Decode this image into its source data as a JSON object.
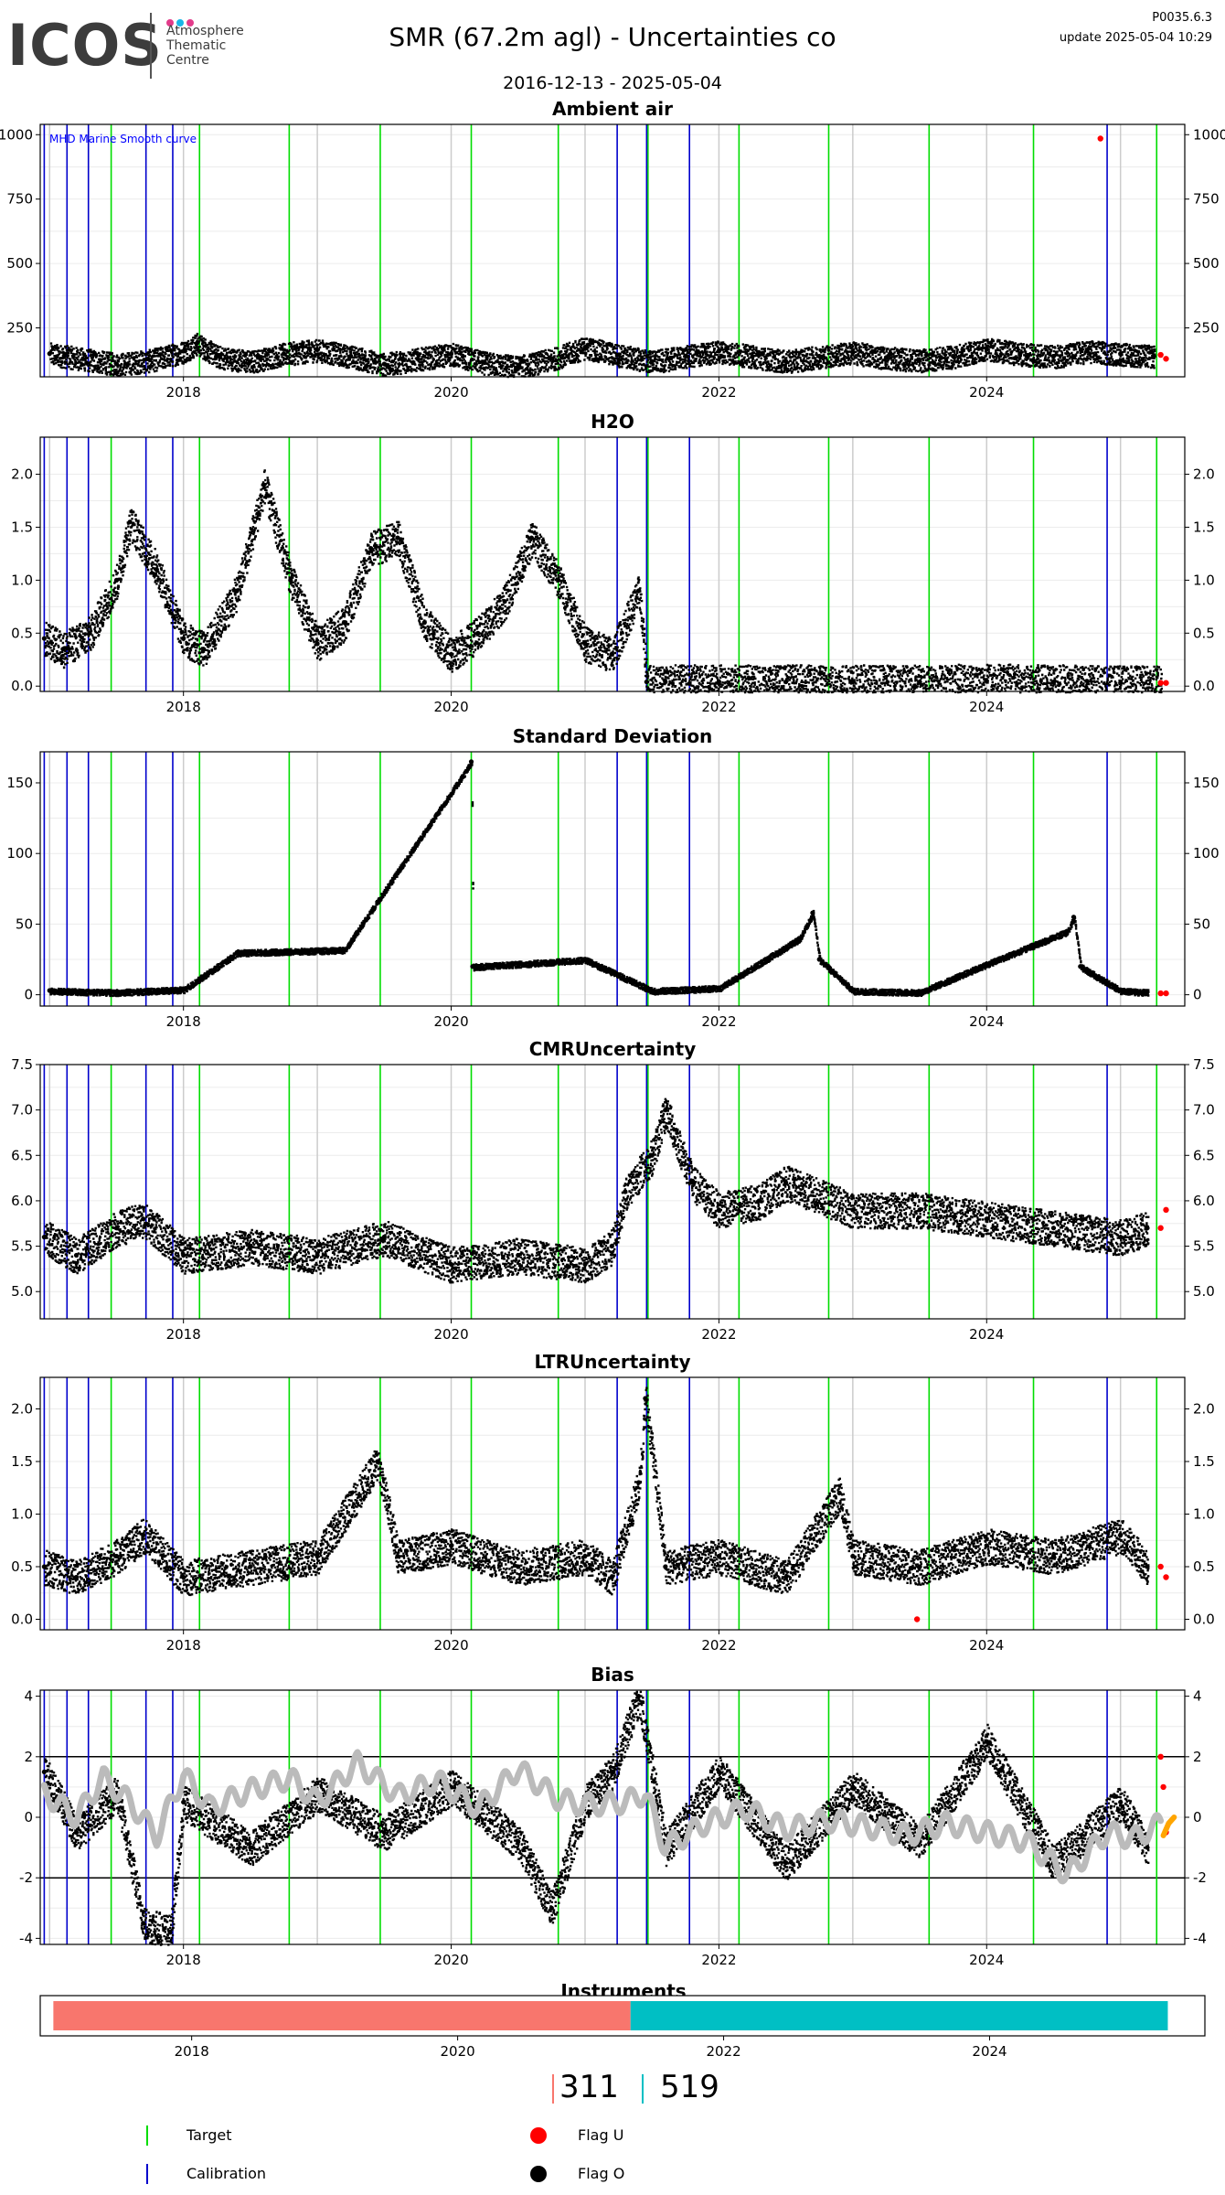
{
  "logo": {
    "word": "ICOS",
    "sub_lines": [
      "Atmosphere",
      "Thematic",
      "Centre"
    ],
    "dot_colors": [
      "#e23b8a",
      "#18b6e6",
      "#e23b8a"
    ]
  },
  "header": {
    "title": "SMR  (67.2m agl) - Uncertainties co",
    "date_range": "2016-12-13 - 2025-05-04",
    "version": "P0035.6.3",
    "update": "update  2025-05-04 10:29"
  },
  "colors": {
    "target": "#00dd00",
    "calibration": "#0000cc",
    "flag_u": "#ff0000",
    "flag_o": "#000000",
    "smooth": "#bbbbbb",
    "bias_tail": "#ffa500",
    "instrument_1": "#f8766d",
    "instrument_2": "#00bfc4",
    "year_grid": "#cccccc",
    "minor_grid": "#ececec"
  },
  "markers": {
    "target": [
      2017.46,
      2018.12,
      2018.79,
      2019.47,
      2020.15,
      2020.8,
      2021.47,
      2022.15,
      2022.82,
      2023.57,
      2024.35,
      2025.27
    ],
    "calibration": [
      2016.96,
      2017.13,
      2017.29,
      2017.72,
      2017.92,
      2021.24,
      2021.46,
      2021.78,
      2024.9
    ]
  },
  "chart_data": [
    {
      "type": "scatter",
      "title": "Ambient air",
      "annotation": "MHD Marine Smooth curve",
      "ylim": [
        60,
        1040
      ],
      "yticks": [
        250,
        500,
        750,
        1000
      ],
      "xticks": [
        2018,
        2020,
        2022,
        2024
      ],
      "series": [
        {
          "role": "flag_o",
          "x": [
            2017.0,
            2017.25,
            2017.5,
            2017.75,
            2018.0,
            2018.1,
            2018.25,
            2018.5,
            2018.75,
            2019.0,
            2019.25,
            2019.5,
            2019.75,
            2020.0,
            2020.25,
            2020.5,
            2020.75,
            2021.0,
            2021.25,
            2021.5,
            2021.75,
            2022.0,
            2022.25,
            2022.5,
            2022.75,
            2023.0,
            2023.25,
            2023.5,
            2023.75,
            2024.0,
            2024.25,
            2024.5,
            2024.75,
            2025.0,
            2025.25
          ],
          "y": [
            150,
            130,
            110,
            125,
            160,
            190,
            140,
            120,
            150,
            165,
            140,
            110,
            130,
            150,
            115,
            100,
            130,
            175,
            145,
            120,
            140,
            160,
            140,
            120,
            140,
            155,
            135,
            125,
            140,
            170,
            150,
            140,
            160,
            150,
            140
          ]
        },
        {
          "role": "flag_u",
          "x": [
            2024.85,
            2025.3,
            2025.34
          ],
          "y": [
            985,
            145,
            130
          ]
        }
      ],
      "smooth": null
    },
    {
      "type": "scatter",
      "title": "H2O",
      "ylim": [
        -0.05,
        2.35
      ],
      "yticks": [
        0.0,
        0.5,
        1.0,
        1.5,
        2.0
      ],
      "xticks": [
        2018,
        2020,
        2022,
        2024
      ],
      "series": [
        {
          "role": "flag_o",
          "x": [
            2016.96,
            2017.1,
            2017.3,
            2017.5,
            2017.6,
            2017.8,
            2018.0,
            2018.15,
            2018.4,
            2018.6,
            2018.8,
            2019.0,
            2019.2,
            2019.4,
            2019.6,
            2019.8,
            2020.0,
            2020.2,
            2020.4,
            2020.6,
            2020.8,
            2021.0,
            2021.2,
            2021.4,
            2021.46,
            2021.6,
            2022.0,
            2022.5,
            2023.0,
            2023.5,
            2024.0,
            2024.5,
            2025.0,
            2025.3
          ],
          "y": [
            0.45,
            0.35,
            0.5,
            1.0,
            1.55,
            1.1,
            0.45,
            0.35,
            0.9,
            1.9,
            1.0,
            0.4,
            0.6,
            1.3,
            1.4,
            0.6,
            0.3,
            0.5,
            0.8,
            1.4,
            1.0,
            0.4,
            0.3,
            0.9,
            0.04,
            0.04,
            0.04,
            0.04,
            0.04,
            0.04,
            0.05,
            0.04,
            0.03,
            0.03
          ]
        },
        {
          "role": "flag_u",
          "x": [
            2025.3,
            2025.34
          ],
          "y": [
            0.03,
            0.03
          ]
        }
      ],
      "smooth": null
    },
    {
      "type": "scatter",
      "title": "Standard Deviation",
      "ylim": [
        -8,
        172
      ],
      "yticks": [
        0,
        50,
        100,
        150
      ],
      "xticks": [
        2018,
        2020,
        2022,
        2024
      ],
      "series": [
        {
          "role": "flag_o",
          "x": [
            2017.0,
            2017.5,
            2018.0,
            2018.4,
            2019.2,
            2020.15,
            2020.16,
            2021.0,
            2021.5,
            2022.0,
            2022.6,
            2022.7,
            2022.75,
            2023.0,
            2023.5,
            2024.0,
            2024.6,
            2024.65,
            2024.7,
            2025.0,
            2025.2
          ],
          "y": [
            3,
            2,
            4,
            30,
            32,
            165,
            20,
            25,
            3,
            5,
            40,
            58,
            25,
            3,
            2,
            22,
            45,
            55,
            20,
            3,
            2
          ]
        },
        {
          "role": "flag_u",
          "x": [
            2025.3,
            2025.34
          ],
          "y": [
            1,
            1
          ]
        }
      ],
      "smooth": null
    },
    {
      "type": "scatter",
      "title": "CMRUncertainty",
      "ylim": [
        4.7,
        7.5
      ],
      "yticks": [
        5.0,
        5.5,
        6.0,
        6.5,
        7.0,
        7.5
      ],
      "xticks": [
        2018,
        2020,
        2022,
        2024
      ],
      "series": [
        {
          "role": "flag_o",
          "x": [
            2016.96,
            2017.2,
            2017.5,
            2017.7,
            2018.0,
            2018.5,
            2019.0,
            2019.5,
            2020.0,
            2020.5,
            2021.0,
            2021.2,
            2021.3,
            2021.5,
            2021.6,
            2021.8,
            2022.0,
            2022.3,
            2022.5,
            2023.0,
            2023.5,
            2024.0,
            2024.5,
            2025.0,
            2025.2
          ],
          "y": [
            5.6,
            5.4,
            5.7,
            5.8,
            5.4,
            5.5,
            5.4,
            5.6,
            5.3,
            5.4,
            5.3,
            5.5,
            6.1,
            6.5,
            7.0,
            6.2,
            5.9,
            6.0,
            6.2,
            5.9,
            5.9,
            5.8,
            5.7,
            5.6,
            5.7
          ]
        },
        {
          "role": "flag_u",
          "x": [
            2025.3,
            2025.34
          ],
          "y": [
            5.7,
            5.9
          ]
        }
      ],
      "smooth": null
    },
    {
      "type": "scatter",
      "title": "LTRUncertainty",
      "ylim": [
        -0.1,
        2.3
      ],
      "yticks": [
        0.0,
        0.5,
        1.0,
        1.5,
        2.0
      ],
      "xticks": [
        2018,
        2020,
        2022,
        2024
      ],
      "series": [
        {
          "role": "flag_o",
          "x": [
            2016.96,
            2017.2,
            2017.5,
            2017.7,
            2018.0,
            2018.5,
            2019.0,
            2019.45,
            2019.6,
            2020.0,
            2020.5,
            2021.0,
            2021.2,
            2021.4,
            2021.45,
            2021.6,
            2022.0,
            2022.5,
            2022.9,
            2023.0,
            2023.5,
            2024.0,
            2024.5,
            2025.0,
            2025.2
          ],
          "y": [
            0.5,
            0.4,
            0.6,
            0.8,
            0.4,
            0.5,
            0.6,
            1.5,
            0.6,
            0.7,
            0.5,
            0.6,
            0.4,
            1.3,
            2.1,
            0.5,
            0.6,
            0.4,
            1.2,
            0.6,
            0.5,
            0.7,
            0.6,
            0.8,
            0.5
          ]
        },
        {
          "role": "flag_u",
          "x": [
            2023.48,
            2025.3,
            2025.34
          ],
          "y": [
            0.0,
            0.5,
            0.4
          ]
        }
      ],
      "smooth": null
    },
    {
      "type": "scatter",
      "title": "Bias",
      "ylim": [
        -4.2,
        4.2
      ],
      "yticks": [
        -4,
        -2,
        0,
        2,
        4
      ],
      "hlines": [
        -2,
        2
      ],
      "xticks": [
        2018,
        2020,
        2022,
        2024
      ],
      "series": [
        {
          "role": "flag_o",
          "x": [
            2016.96,
            2017.2,
            2017.5,
            2017.7,
            2017.9,
            2018.0,
            2018.5,
            2019.0,
            2019.5,
            2020.0,
            2020.5,
            2020.75,
            2021.0,
            2021.2,
            2021.4,
            2021.6,
            2022.0,
            2022.5,
            2023.0,
            2023.5,
            2024.0,
            2024.5,
            2025.0,
            2025.2
          ],
          "y": [
            1.5,
            -0.5,
            0.8,
            -3.5,
            -3.8,
            0.5,
            -1.0,
            0.8,
            -0.5,
            1.0,
            -0.8,
            -3.0,
            0.5,
            1.5,
            4.0,
            -1.0,
            1.5,
            -1.5,
            1.0,
            -0.8,
            2.5,
            -1.5,
            0.5,
            -1.0
          ]
        },
        {
          "role": "flag_u",
          "x": [
            2025.3,
            2025.32,
            2025.34
          ],
          "y": [
            2.0,
            1.0,
            -0.5
          ]
        }
      ],
      "smooth": {
        "x": [
          2016.96,
          2017.2,
          2017.4,
          2017.6,
          2017.8,
          2018.0,
          2018.2,
          2018.5,
          2018.8,
          2019.0,
          2019.3,
          2019.6,
          2019.9,
          2020.2,
          2020.5,
          2020.8,
          2021.0,
          2021.3,
          2021.45,
          2021.6,
          2021.9,
          2022.2,
          2022.5,
          2022.8,
          2023.1,
          2023.4,
          2023.7,
          2024.0,
          2024.3,
          2024.6,
          2024.9,
          2025.1,
          2025.3
        ],
        "y": [
          0.8,
          0.0,
          1.3,
          0.5,
          -0.6,
          1.4,
          0.3,
          0.9,
          1.3,
          0.5,
          1.8,
          0.7,
          1.2,
          0.3,
          1.6,
          0.6,
          0.4,
          0.5,
          0.8,
          -1.0,
          -0.2,
          0.3,
          -0.4,
          -0.1,
          -0.3,
          -0.6,
          -0.2,
          -0.5,
          -0.8,
          -1.9,
          -0.5,
          -0.7,
          -0.2
        ]
      },
      "tail": {
        "x": [
          2025.32,
          2025.36,
          2025.4
        ],
        "y": [
          -0.6,
          -0.2,
          0.0
        ]
      }
    }
  ],
  "instruments": {
    "title": "Instruments",
    "xticks": [
      2018,
      2020,
      2022,
      2024
    ],
    "segments": [
      {
        "start": 2016.96,
        "end": 2021.3,
        "color_key": "instrument_1"
      },
      {
        "start": 2021.3,
        "end": 2025.34,
        "color_key": "instrument_2"
      }
    ],
    "counts": [
      {
        "value": "311",
        "color_key": "instrument_1"
      },
      {
        "value": "519",
        "color_key": "instrument_2"
      }
    ]
  },
  "legend": {
    "target": "Target",
    "calibration": "Calibration",
    "flag_u": "Flag U",
    "flag_o": "Flag O"
  }
}
